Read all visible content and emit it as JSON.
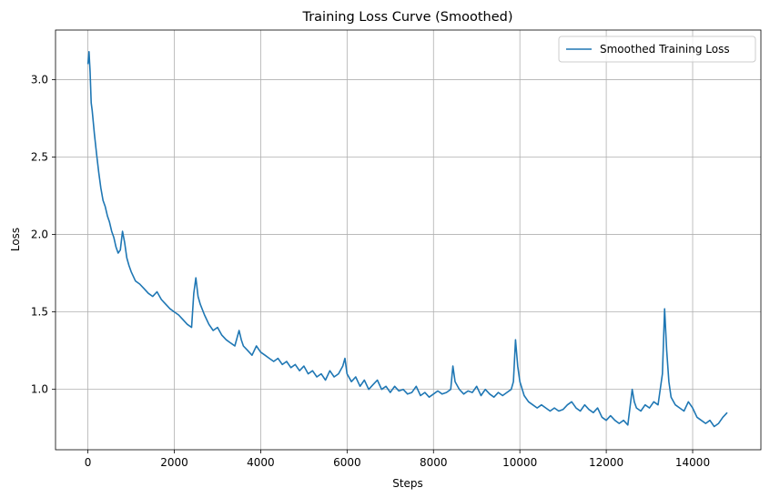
{
  "chart_data": {
    "type": "line",
    "title": "Training Loss Curve (Smoothed)",
    "xlabel": "Steps",
    "ylabel": "Loss",
    "xlim": [
      -750,
      15580
    ],
    "ylim": [
      0.61,
      3.32
    ],
    "xticks": [
      0,
      2000,
      4000,
      6000,
      8000,
      10000,
      12000,
      14000
    ],
    "xtick_labels": [
      "0",
      "2000",
      "4000",
      "6000",
      "8000",
      "10000",
      "12000",
      "14000"
    ],
    "yticks": [
      1.0,
      1.5,
      2.0,
      2.5,
      3.0
    ],
    "ytick_labels": [
      "1.0",
      "1.5",
      "2.0",
      "2.5",
      "3.0"
    ],
    "grid": true,
    "legend": {
      "position": "top-right"
    },
    "series": [
      {
        "name": "Smoothed Training Loss",
        "color": "#1f77b4",
        "x": [
          0,
          25,
          50,
          75,
          100,
          150,
          200,
          250,
          300,
          350,
          400,
          450,
          500,
          550,
          600,
          650,
          700,
          750,
          800,
          850,
          900,
          950,
          1000,
          1100,
          1200,
          1300,
          1400,
          1500,
          1600,
          1700,
          1800,
          1900,
          2000,
          2100,
          2200,
          2300,
          2400,
          2450,
          2500,
          2550,
          2600,
          2700,
          2800,
          2900,
          3000,
          3100,
          3200,
          3300,
          3400,
          3500,
          3550,
          3600,
          3700,
          3800,
          3900,
          4000,
          4100,
          4200,
          4300,
          4400,
          4500,
          4600,
          4700,
          4800,
          4900,
          5000,
          5100,
          5200,
          5300,
          5400,
          5500,
          5600,
          5700,
          5800,
          5900,
          5950,
          6000,
          6100,
          6200,
          6300,
          6400,
          6500,
          6600,
          6700,
          6800,
          6900,
          7000,
          7100,
          7200,
          7300,
          7400,
          7500,
          7600,
          7700,
          7800,
          7900,
          8000,
          8100,
          8200,
          8300,
          8400,
          8450,
          8500,
          8600,
          8700,
          8800,
          8900,
          9000,
          9100,
          9200,
          9300,
          9400,
          9500,
          9600,
          9700,
          9800,
          9850,
          9900,
          9950,
          10000,
          10100,
          10200,
          10300,
          10400,
          10500,
          10600,
          10700,
          10800,
          10900,
          11000,
          11100,
          11200,
          11300,
          11400,
          11500,
          11600,
          11700,
          11800,
          11900,
          12000,
          12100,
          12200,
          12300,
          12400,
          12500,
          12600,
          12650,
          12700,
          12800,
          12900,
          13000,
          13100,
          13200,
          13300,
          13350,
          13400,
          13450,
          13500,
          13600,
          13700,
          13800,
          13900,
          14000,
          14100,
          14200,
          14300,
          14400,
          14500,
          14600,
          14700,
          14800
        ],
        "y": [
          3.1,
          3.18,
          3.05,
          2.85,
          2.8,
          2.65,
          2.52,
          2.4,
          2.3,
          2.22,
          2.18,
          2.12,
          2.08,
          2.02,
          1.98,
          1.92,
          1.88,
          1.9,
          2.02,
          1.95,
          1.85,
          1.8,
          1.76,
          1.7,
          1.68,
          1.65,
          1.62,
          1.6,
          1.63,
          1.58,
          1.55,
          1.52,
          1.5,
          1.48,
          1.45,
          1.42,
          1.4,
          1.62,
          1.72,
          1.6,
          1.55,
          1.48,
          1.42,
          1.38,
          1.4,
          1.35,
          1.32,
          1.3,
          1.28,
          1.38,
          1.32,
          1.28,
          1.25,
          1.22,
          1.28,
          1.24,
          1.22,
          1.2,
          1.18,
          1.2,
          1.16,
          1.18,
          1.14,
          1.16,
          1.12,
          1.15,
          1.1,
          1.12,
          1.08,
          1.1,
          1.06,
          1.12,
          1.08,
          1.1,
          1.15,
          1.2,
          1.1,
          1.05,
          1.08,
          1.02,
          1.06,
          1.0,
          1.03,
          1.06,
          1.0,
          1.02,
          0.98,
          1.02,
          0.99,
          1.0,
          0.97,
          0.98,
          1.02,
          0.96,
          0.98,
          0.95,
          0.97,
          0.99,
          0.97,
          0.98,
          1.0,
          1.15,
          1.05,
          1.0,
          0.97,
          0.99,
          0.98,
          1.02,
          0.96,
          1.0,
          0.97,
          0.95,
          0.98,
          0.96,
          0.98,
          1.0,
          1.05,
          1.32,
          1.15,
          1.05,
          0.96,
          0.92,
          0.9,
          0.88,
          0.9,
          0.88,
          0.86,
          0.88,
          0.86,
          0.87,
          0.9,
          0.92,
          0.88,
          0.86,
          0.9,
          0.87,
          0.85,
          0.88,
          0.82,
          0.8,
          0.83,
          0.8,
          0.78,
          0.8,
          0.77,
          1.0,
          0.92,
          0.88,
          0.86,
          0.9,
          0.88,
          0.92,
          0.9,
          1.1,
          1.52,
          1.25,
          1.05,
          0.95,
          0.9,
          0.88,
          0.86,
          0.92,
          0.88,
          0.82,
          0.8,
          0.78,
          0.8,
          0.76,
          0.78,
          0.82,
          0.85
        ]
      }
    ]
  }
}
